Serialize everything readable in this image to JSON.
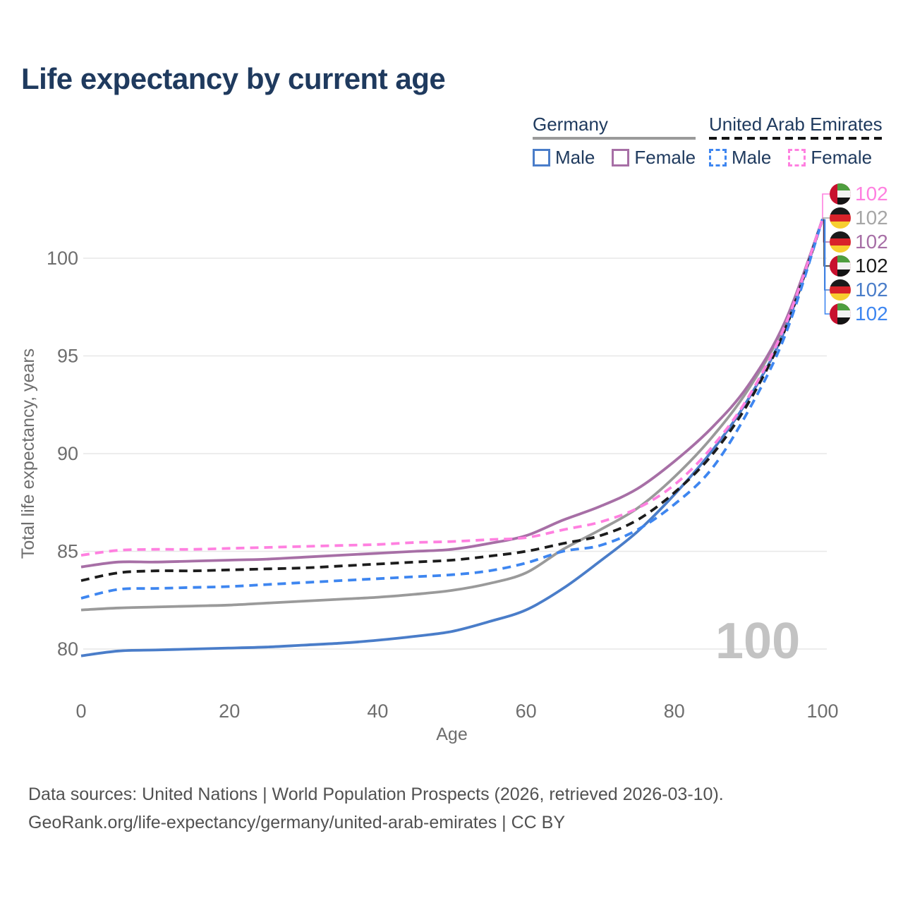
{
  "title": "Life expectancy by current age",
  "legend": {
    "germany": {
      "name": "Germany",
      "male_label": "Male",
      "female_label": "Female"
    },
    "uae": {
      "name": "United Arab Emirates",
      "male_label": "Male",
      "female_label": "Female"
    }
  },
  "watermark_age": "100",
  "sources": {
    "line1": "Data sources: United Nations | World Population Prospects (2026, retrieved 2026-03-10).",
    "line2": "GeoRank.org/life-expectancy/germany/united-arab-emirates | CC BY"
  },
  "colors": {
    "title_text": "#1f3a5e",
    "axis_text": "#6e6e6e",
    "gridline": "#e7e7e7",
    "germany_male": "#4a7dc9",
    "germany_female": "#a76fa6",
    "germany_total": "#9a9a9a",
    "uae_male": "#3e86f0",
    "uae_female": "#ff80e0",
    "uae_total": "#1c1c1c",
    "watermark": "#c3c3c3"
  },
  "chart_data": {
    "type": "line",
    "title": "Life expectancy by current age",
    "xlabel": "Age",
    "ylabel": "Total life expectancy, years",
    "x_ticks": [
      0,
      20,
      40,
      60,
      80,
      100
    ],
    "y_ticks": [
      80,
      85,
      90,
      95,
      100
    ],
    "xlim": [
      0,
      100
    ],
    "ylim": [
      78.5,
      103
    ],
    "grid": "horizontal-only",
    "legend_position": "top-right",
    "x": [
      0,
      5,
      10,
      15,
      20,
      25,
      30,
      35,
      40,
      45,
      50,
      55,
      60,
      65,
      70,
      75,
      80,
      85,
      90,
      95,
      100
    ],
    "series": [
      {
        "id": "germany_total",
        "name": "Germany Total",
        "color": "#9a9a9a",
        "dashed": false,
        "end_label": "102",
        "flag": "de",
        "values": [
          82.0,
          82.1,
          82.15,
          82.2,
          82.25,
          82.35,
          82.45,
          82.55,
          82.65,
          82.8,
          83.0,
          83.35,
          83.9,
          85.1,
          86.1,
          87.2,
          88.8,
          90.8,
          93.3,
          96.7,
          102
        ]
      },
      {
        "id": "germany_female",
        "name": "Germany Female",
        "color": "#a76fa6",
        "dashed": false,
        "end_label": "102",
        "flag": "de",
        "values": [
          84.2,
          84.45,
          84.45,
          84.5,
          84.55,
          84.6,
          84.7,
          84.8,
          84.9,
          85.0,
          85.1,
          85.4,
          85.8,
          86.6,
          87.3,
          88.2,
          89.6,
          91.3,
          93.5,
          96.8,
          102
        ]
      },
      {
        "id": "germany_male",
        "name": "Germany Male",
        "color": "#4a7dc9",
        "dashed": false,
        "end_label": "102",
        "flag": "de",
        "values": [
          79.65,
          79.9,
          79.95,
          80.0,
          80.05,
          80.1,
          80.2,
          80.3,
          80.45,
          80.65,
          80.9,
          81.4,
          82.0,
          83.1,
          84.5,
          86.0,
          87.9,
          90.1,
          92.8,
          96.4,
          102
        ]
      },
      {
        "id": "uae_total",
        "name": "United Arab Emirates Total",
        "color": "#1c1c1c",
        "dashed": true,
        "end_label": "102",
        "flag": "ae",
        "values": [
          83.5,
          83.9,
          84.0,
          84.0,
          84.05,
          84.1,
          84.15,
          84.25,
          84.35,
          84.45,
          84.55,
          84.75,
          85.0,
          85.4,
          85.8,
          86.6,
          88.0,
          89.9,
          92.6,
          96.4,
          102
        ]
      },
      {
        "id": "uae_male",
        "name": "United Arab Emirates Male",
        "color": "#3e86f0",
        "dashed": true,
        "end_label": "102",
        "flag": "ae",
        "values": [
          82.6,
          83.05,
          83.1,
          83.15,
          83.2,
          83.3,
          83.4,
          83.5,
          83.6,
          83.7,
          83.8,
          84.0,
          84.4,
          85.0,
          85.3,
          86.1,
          87.4,
          89.2,
          92.2,
          96.1,
          102
        ]
      },
      {
        "id": "uae_female",
        "name": "United Arab Emirates Female",
        "color": "#ff80e0",
        "dashed": true,
        "end_label": "102",
        "flag": "ae",
        "values": [
          84.8,
          85.05,
          85.1,
          85.1,
          85.15,
          85.2,
          85.25,
          85.3,
          85.35,
          85.45,
          85.5,
          85.6,
          85.7,
          86.1,
          86.5,
          87.2,
          88.4,
          90.3,
          92.9,
          96.6,
          102
        ]
      }
    ]
  },
  "right_labels": [
    {
      "flag": "ae",
      "value": "102",
      "color": "#ff80e0",
      "series": "uae_female"
    },
    {
      "flag": "de",
      "value": "102",
      "color": "#a6a6a6",
      "series": "germany_total"
    },
    {
      "flag": "de",
      "value": "102",
      "color": "#a76fa6",
      "series": "germany_female"
    },
    {
      "flag": "ae",
      "value": "102",
      "color": "#1c1c1c",
      "series": "uae_total"
    },
    {
      "flag": "de",
      "value": "102",
      "color": "#4a7dc9",
      "series": "germany_male"
    },
    {
      "flag": "ae",
      "value": "102",
      "color": "#3e86f0",
      "series": "uae_male"
    }
  ]
}
